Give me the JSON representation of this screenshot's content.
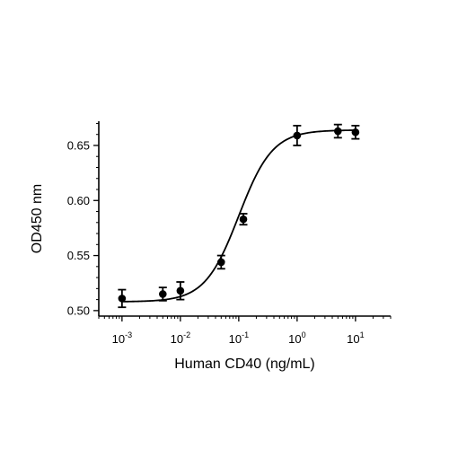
{
  "chart_data": {
    "type": "scatter",
    "xlabel": "Human CD40 (ng/mL)",
    "ylabel": "OD450 nm",
    "x_scale": "log",
    "xlim": [
      0.0004,
      40
    ],
    "ylim": [
      0.495,
      0.672
    ],
    "x_ticks": [
      0.001,
      0.01,
      0.1,
      1,
      10
    ],
    "x_tick_labels": [
      {
        "base": "10",
        "exp": "-3"
      },
      {
        "base": "10",
        "exp": "-2"
      },
      {
        "base": "10",
        "exp": "-1"
      },
      {
        "base": "10",
        "exp": "0"
      },
      {
        "base": "10",
        "exp": "1"
      }
    ],
    "y_ticks": [
      0.5,
      0.55,
      0.6,
      0.65
    ],
    "y_tick_labels": [
      "0.50",
      "0.55",
      "0.60",
      "0.65"
    ],
    "grid": false,
    "legend": "none",
    "points": [
      {
        "x": 0.001,
        "y": 0.511,
        "err": 0.008
      },
      {
        "x": 0.005,
        "y": 0.515,
        "err": 0.006
      },
      {
        "x": 0.01,
        "y": 0.518,
        "err": 0.008
      },
      {
        "x": 0.05,
        "y": 0.544,
        "err": 0.006
      },
      {
        "x": 0.12,
        "y": 0.583,
        "err": 0.005
      },
      {
        "x": 1,
        "y": 0.659,
        "err": 0.009
      },
      {
        "x": 5,
        "y": 0.663,
        "err": 0.006
      },
      {
        "x": 10,
        "y": 0.662,
        "err": 0.006
      }
    ],
    "fit": {
      "model": "4PL",
      "bottom": 0.508,
      "top": 0.664,
      "ec50": 0.1,
      "hill": 1.5
    },
    "color": "#000000"
  }
}
